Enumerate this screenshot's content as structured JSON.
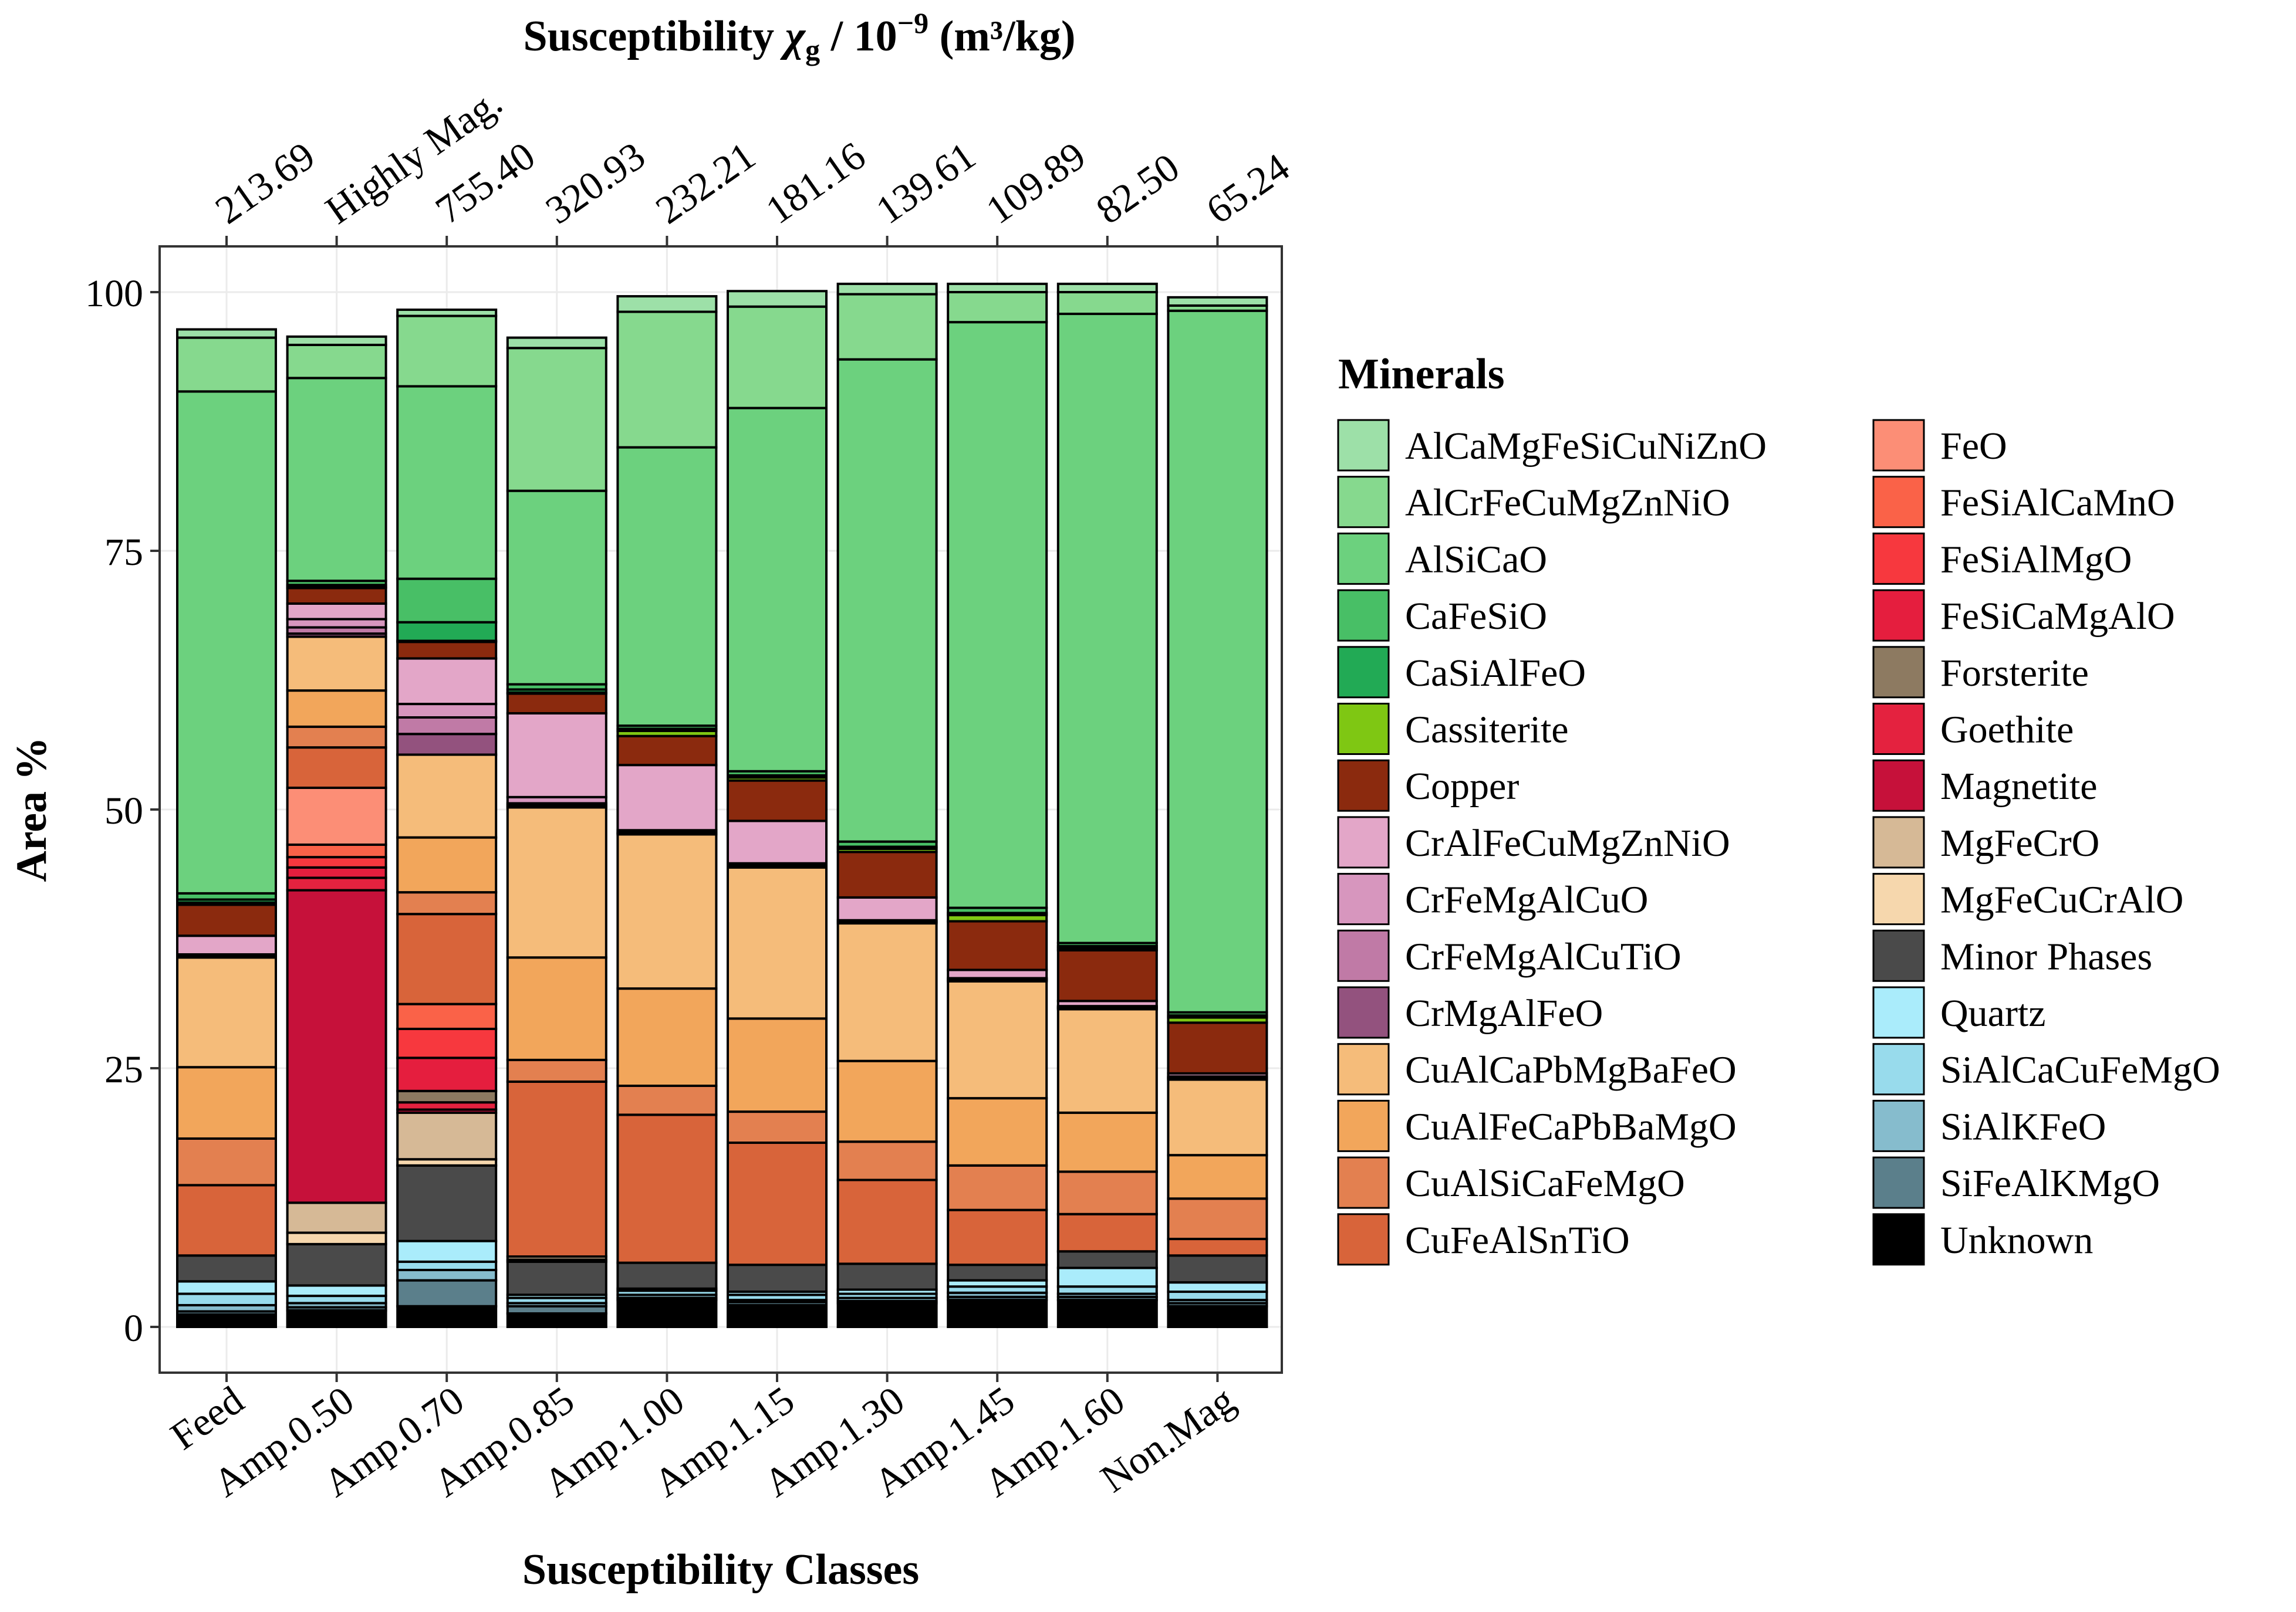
{
  "chart_data": {
    "type": "bar",
    "stacked": true,
    "top_title": "Susceptibility χg / 10⁻⁹ (m³/kg)",
    "top_title_parts": {
      "pre": "Susceptibility ",
      "chi": "χ",
      "sub": "g",
      "post": " / 10",
      "sup": "−9",
      "tail": " (m³/kg)"
    },
    "xlabel": "Susceptibility Classes",
    "ylabel": "Area %",
    "ylim": [
      0,
      100
    ],
    "yticks": [
      "0",
      "25",
      "50",
      "75",
      "100"
    ],
    "categories": [
      "Feed",
      "Amp.0.50",
      "Amp.0.70",
      "Amp.0.85",
      "Amp.1.00",
      "Amp.1.15",
      "Amp.1.30",
      "Amp.1.45",
      "Amp.1.60",
      "Non.Mag"
    ],
    "top_labels": [
      "213.69",
      "Highly Mag.",
      "755.40",
      "320.93",
      "232.21",
      "181.16",
      "139.61",
      "109.89",
      "82.50",
      "65.24"
    ],
    "legend_title": "Minerals",
    "minerals": [
      {
        "name": "AlCaMgFeSiCuNiZnO",
        "color": "#9de0a8"
      },
      {
        "name": "AlCrFeCuMgZnNiO",
        "color": "#86d98e"
      },
      {
        "name": "AlSiCaO",
        "color": "#6cd17e"
      },
      {
        "name": "CaFeSiO",
        "color": "#48bf66"
      },
      {
        "name": "CaSiAlFeO",
        "color": "#22aa55"
      },
      {
        "name": "Cassiterite",
        "color": "#7fc713"
      },
      {
        "name": "Copper",
        "color": "#8b2a0e"
      },
      {
        "name": "CrAlFeCuMgZnNiO",
        "color": "#e3a6c8"
      },
      {
        "name": "CrFeMgAlCuO",
        "color": "#d796be"
      },
      {
        "name": "CrFeMgAlCuTiO",
        "color": "#c07aa6"
      },
      {
        "name": "CrMgAlFeO",
        "color": "#93527e"
      },
      {
        "name": "CuAlCaPbMgBaFeO",
        "color": "#f5bc7a"
      },
      {
        "name": "CuAlFeCaPbBaMgO",
        "color": "#f2a65b"
      },
      {
        "name": "CuAlSiCaFeMgO",
        "color": "#e38050"
      },
      {
        "name": "CuFeAlSnTiO",
        "color": "#d8643a"
      },
      {
        "name": "FeO",
        "color": "#fc8e76"
      },
      {
        "name": "FeSiAlCaMnO",
        "color": "#fa6248"
      },
      {
        "name": "FeSiAlMgO",
        "color": "#f7383e"
      },
      {
        "name": "FeSiCaMgAlO",
        "color": "#e51e3e"
      },
      {
        "name": "Forsterite",
        "color": "#8d7a61"
      },
      {
        "name": "Goethite",
        "color": "#e4223f"
      },
      {
        "name": "Magnetite",
        "color": "#c6113a"
      },
      {
        "name": "MgFeCrO",
        "color": "#d6b996"
      },
      {
        "name": "MgFeCuCrAlO",
        "color": "#f6d7ad"
      },
      {
        "name": "Minor Phases",
        "color": "#4a4a4a"
      },
      {
        "name": "Quartz",
        "color": "#aaecfb"
      },
      {
        "name": "SiAlCaCuFeMgO",
        "color": "#98dbec"
      },
      {
        "name": "SiAlKFeO",
        "color": "#86bccd"
      },
      {
        "name": "SiFeAlKMgO",
        "color": "#5b7f8b"
      },
      {
        "name": "Unknown",
        "color": "#000000"
      }
    ],
    "series": [
      {
        "name": "AlCaMgFeSiCuNiZnO",
        "values": [
          0.8,
          0.8,
          0.6,
          1.0,
          1.5,
          1.5,
          1.0,
          0.8,
          0.8,
          0.8
        ]
      },
      {
        "name": "AlCrFeCuMgZnNiO",
        "values": [
          5.2,
          3.2,
          6.8,
          13.8,
          13.1,
          9.8,
          6.3,
          2.9,
          2.1,
          0.5
        ]
      },
      {
        "name": "AlSiCaO",
        "values": [
          48.5,
          19.6,
          18.6,
          18.7,
          26.9,
          35.1,
          46.6,
          56.6,
          60.8,
          67.8
        ]
      },
      {
        "name": "CaFeSiO",
        "values": [
          0.6,
          0.4,
          4.2,
          0.5,
          0.3,
          0.4,
          0.5,
          0.5,
          0.3,
          0.3
        ]
      },
      {
        "name": "CaSiAlFeO",
        "values": [
          0.3,
          0.2,
          1.8,
          0.3,
          0.2,
          0.2,
          0.2,
          0.2,
          0.2,
          0.2
        ]
      },
      {
        "name": "Cassiterite",
        "values": [
          0.2,
          0.1,
          0.1,
          0.1,
          0.5,
          0.3,
          0.3,
          0.6,
          0.2,
          0.5
        ]
      },
      {
        "name": "Copper",
        "values": [
          3.0,
          1.5,
          1.6,
          1.9,
          2.8,
          3.9,
          4.4,
          4.7,
          4.9,
          4.9
        ]
      },
      {
        "name": "CrAlFeCuMgZnNiO",
        "values": [
          1.8,
          1.5,
          4.4,
          8.1,
          6.3,
          4.1,
          2.2,
          0.8,
          0.5,
          0.3
        ]
      },
      {
        "name": "CrFeMgAlCuO",
        "values": [
          0.1,
          0.8,
          1.3,
          0.6,
          0.2,
          0.2,
          0.1,
          0.1,
          0.1,
          0.1
        ]
      },
      {
        "name": "CrFeMgAlCuTiO",
        "values": [
          0.1,
          0.6,
          1.6,
          0.2,
          0.1,
          0.1,
          0.1,
          0.1,
          0.1,
          0.1
        ]
      },
      {
        "name": "CrMgAlFeO",
        "values": [
          0.1,
          0.3,
          2.0,
          0.2,
          0.1,
          0.1,
          0.1,
          0.1,
          0.1,
          0.1
        ]
      },
      {
        "name": "CuAlCaPbMgBaFeO",
        "values": [
          10.6,
          5.2,
          8.0,
          14.5,
          14.9,
          14.6,
          13.3,
          11.3,
          10.0,
          7.3
        ]
      },
      {
        "name": "CuAlFeCaPbBaMgO",
        "values": [
          6.9,
          3.5,
          5.3,
          9.9,
          9.4,
          9.0,
          7.8,
          6.5,
          5.7,
          4.2
        ]
      },
      {
        "name": "CuAlSiCaFeMgO",
        "values": [
          4.5,
          2.0,
          2.1,
          2.1,
          2.8,
          3.0,
          3.7,
          4.3,
          4.1,
          3.9
        ]
      },
      {
        "name": "CuFeAlSnTiO",
        "values": [
          6.8,
          3.9,
          8.7,
          16.9,
          14.3,
          11.8,
          8.1,
          5.3,
          3.6,
          1.6
        ]
      },
      {
        "name": "FeO",
        "values": [
          0,
          5.5,
          0,
          0,
          0,
          0,
          0,
          0,
          0,
          0
        ]
      },
      {
        "name": "FeSiAlCaMnO",
        "values": [
          0,
          1.2,
          2.4,
          0,
          0,
          0,
          0,
          0,
          0,
          0
        ]
      },
      {
        "name": "FeSiAlMgO",
        "values": [
          0,
          1.0,
          2.8,
          0,
          0,
          0,
          0,
          0,
          0,
          0
        ]
      },
      {
        "name": "FeSiCaMgAlO",
        "values": [
          0,
          1.0,
          3.2,
          0,
          0,
          0,
          0,
          0,
          0,
          0
        ]
      },
      {
        "name": "Forsterite",
        "values": [
          0,
          0,
          1.1,
          0,
          0,
          0,
          0,
          0,
          0,
          0
        ]
      },
      {
        "name": "Goethite",
        "values": [
          0,
          1.2,
          0.7,
          0,
          0,
          0,
          0,
          0,
          0,
          0
        ]
      },
      {
        "name": "Magnetite",
        "values": [
          0,
          30.2,
          0.3,
          0,
          0,
          0,
          0,
          0,
          0,
          0
        ]
      },
      {
        "name": "MgFeCrO",
        "values": [
          0,
          2.9,
          4.5,
          0.3,
          0,
          0,
          0,
          0,
          0,
          0
        ]
      },
      {
        "name": "MgFeCuCrAlO",
        "values": [
          0,
          1.1,
          0.6,
          0.2,
          0,
          0,
          0,
          0,
          0,
          0
        ]
      },
      {
        "name": "Minor Phases",
        "values": [
          2.5,
          4.0,
          7.3,
          3.2,
          2.5,
          2.6,
          2.5,
          1.5,
          1.6,
          2.6
        ]
      },
      {
        "name": "Quartz",
        "values": [
          1.2,
          1.0,
          2.0,
          0.3,
          0.2,
          0.3,
          0.4,
          0.6,
          1.8,
          0.9
        ]
      },
      {
        "name": "SiAlCaCuFeMgO",
        "values": [
          1.1,
          0.7,
          0.8,
          0.5,
          0.4,
          0.5,
          0.4,
          0.6,
          0.7,
          0.8
        ]
      },
      {
        "name": "SiAlKFeO",
        "values": [
          0.6,
          0.4,
          1.0,
          0.3,
          0.3,
          0.2,
          0.3,
          0.4,
          0.3,
          0.3
        ]
      },
      {
        "name": "SiFeAlKMgO",
        "values": [
          0.3,
          0.3,
          2.5,
          0.7,
          0.2,
          0.3,
          0.2,
          0.3,
          0.3,
          0.3
        ]
      },
      {
        "name": "Unknown",
        "values": [
          1.2,
          1.6,
          2.0,
          1.3,
          2.6,
          2.1,
          2.3,
          2.6,
          2.6,
          2.0
        ]
      }
    ]
  }
}
